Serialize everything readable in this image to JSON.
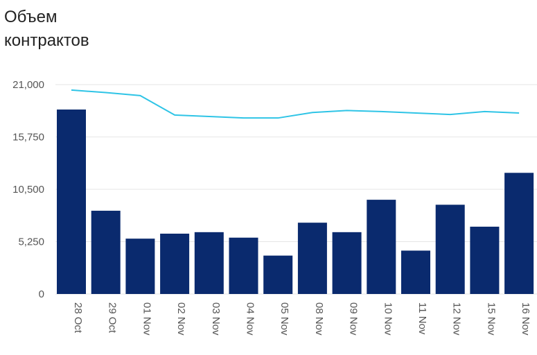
{
  "title_line1": "Объем",
  "title_line2": "контрактов",
  "chart_data": {
    "type": "bar",
    "title": "Объем контрактов",
    "xlabel": "",
    "ylabel": "",
    "ylim": [
      0,
      21000
    ],
    "yticks": [
      "0",
      "5,250",
      "10,500",
      "15,750",
      "21,000"
    ],
    "ytick_values": [
      0,
      5250,
      10500,
      15750,
      21000
    ],
    "grid": true,
    "categories": [
      "28 Oct",
      "29 Oct",
      "01 Nov",
      "02 Nov",
      "03 Nov",
      "04 Nov",
      "05 Nov",
      "08 Nov",
      "09 Nov",
      "10 Nov",
      "11 Nov",
      "12 Nov",
      "15 Nov",
      "16 Nov"
    ],
    "series": [
      {
        "name": "bars",
        "type": "bar",
        "color": "#0a2a6e",
        "values": [
          18500,
          8350,
          5550,
          6050,
          6200,
          5650,
          3850,
          7150,
          6200,
          9450,
          4350,
          8950,
          6750,
          12150
        ]
      },
      {
        "name": "line",
        "type": "line",
        "color": "#2ec4e6",
        "values": [
          20450,
          20200,
          19900,
          17950,
          17800,
          17650,
          17650,
          18200,
          18400,
          18300,
          18150,
          18000,
          18300,
          18150
        ]
      }
    ]
  }
}
